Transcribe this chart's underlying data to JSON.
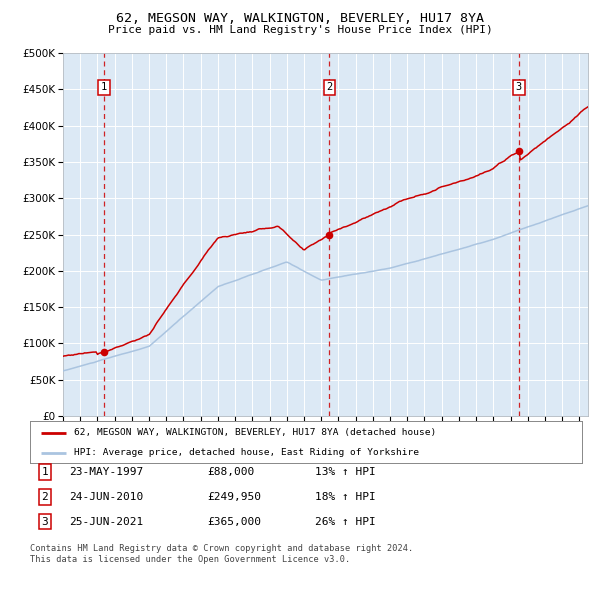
{
  "title1": "62, MEGSON WAY, WALKINGTON, BEVERLEY, HU17 8YA",
  "title2": "Price paid vs. HM Land Registry's House Price Index (HPI)",
  "legend1": "62, MEGSON WAY, WALKINGTON, BEVERLEY, HU17 8YA (detached house)",
  "legend2": "HPI: Average price, detached house, East Riding of Yorkshire",
  "sale_dates": [
    1997.38,
    2010.48,
    2021.48
  ],
  "sale_prices": [
    88000,
    249950,
    365000
  ],
  "sale_labels": [
    "1",
    "2",
    "3"
  ],
  "table_data": [
    [
      "1",
      "23-MAY-1997",
      "£88,000",
      "13% ↑ HPI"
    ],
    [
      "2",
      "24-JUN-2010",
      "£249,950",
      "18% ↑ HPI"
    ],
    [
      "3",
      "25-JUN-2021",
      "£365,000",
      "26% ↑ HPI"
    ]
  ],
  "footer1": "Contains HM Land Registry data © Crown copyright and database right 2024.",
  "footer2": "This data is licensed under the Open Government Licence v3.0.",
  "hpi_color": "#aac4e0",
  "sale_color": "#cc0000",
  "bg_color": "#dce9f5",
  "ylim": [
    0,
    500000
  ],
  "xlim_start": 1995.0,
  "xlim_end": 2025.5
}
